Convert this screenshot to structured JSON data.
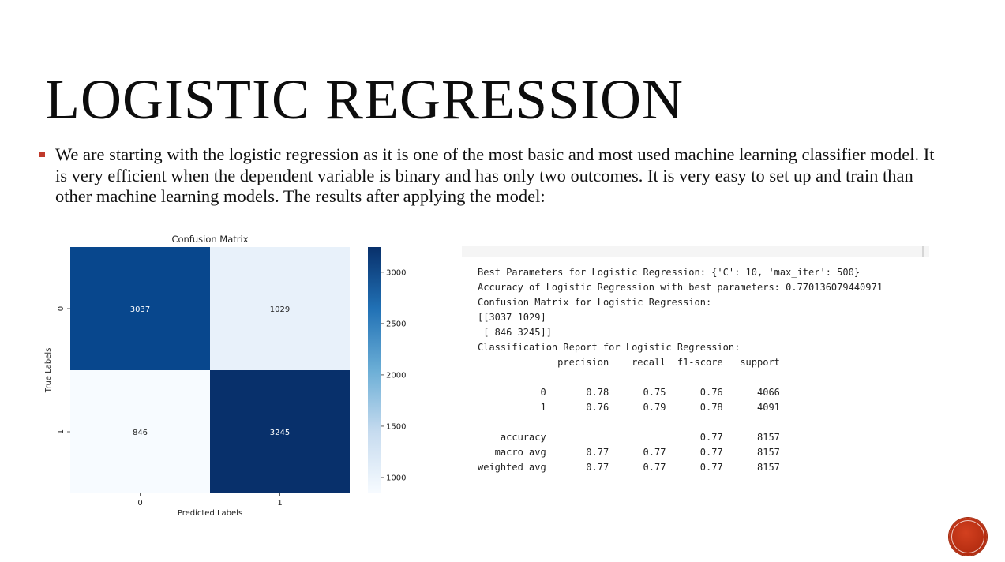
{
  "slide": {
    "title": "LOGISTIC REGRESSION",
    "bullet": "We are starting with the logistic regression as it is one of the most basic and most used machine learning classifier model. It is very efficient when the dependent variable is binary and has only two outcomes. It is very easy to set up and train than other machine learning models. The results after applying the model:",
    "bullet_color": "#c0392b"
  },
  "chart_data": {
    "type": "heatmap",
    "title": "Confusion Matrix",
    "xlabel": "Predicted Labels",
    "ylabel": "True Labels",
    "x_categories": [
      "0",
      "1"
    ],
    "y_categories": [
      "0",
      "1"
    ],
    "values": [
      [
        3037,
        1029
      ],
      [
        846,
        3245
      ]
    ],
    "colormap": "Blues",
    "colorbar": {
      "range": [
        846,
        3245
      ],
      "ticks": [
        1000,
        1500,
        2000,
        2500,
        3000
      ]
    }
  },
  "console": {
    "lines": [
      "Best Parameters for Logistic Regression: {'C': 10, 'max_iter': 500}",
      "Accuracy of Logistic Regression with best parameters: 0.770136079440971",
      "Confusion Matrix for Logistic Regression:",
      "[[3037 1029]",
      " [ 846 3245]]",
      "Classification Report for Logistic Regression:",
      "              precision    recall  f1-score   support",
      "",
      "           0       0.78      0.75      0.76      4066",
      "           1       0.76      0.79      0.78      4091",
      "",
      "    accuracy                           0.77      8157",
      "   macro avg       0.77      0.77      0.77      8157",
      "weighted avg       0.77      0.77      0.77      8157"
    ]
  },
  "badge": {
    "icon": "circle-badge-icon",
    "color": "#b32c10"
  }
}
